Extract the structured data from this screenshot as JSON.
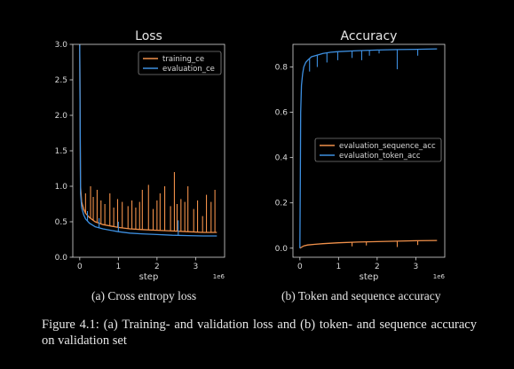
{
  "chart_data": [
    {
      "type": "line",
      "title": "Loss",
      "xlabel": "step",
      "x_scale_label": "1e6",
      "ylabel": "",
      "xlim": [
        -0.18,
        3.75
      ],
      "ylim": [
        0.0,
        3.0
      ],
      "x_ticks": [
        0,
        1,
        2,
        3
      ],
      "y_ticks": [
        0.0,
        0.5,
        1.0,
        1.5,
        2.0,
        2.5,
        3.0
      ],
      "legend_position": "upper right",
      "series": [
        {
          "name": "training_ce",
          "color": "#f0904a",
          "x": [
            0.0,
            0.02,
            0.05,
            0.1,
            0.15,
            0.25,
            0.4,
            0.6,
            0.8,
            1.0,
            1.3,
            1.6,
            2.0,
            2.4,
            2.8,
            3.2,
            3.55
          ],
          "y": [
            3.0,
            1.0,
            0.78,
            0.68,
            0.62,
            0.56,
            0.5,
            0.46,
            0.44,
            0.42,
            0.4,
            0.39,
            0.38,
            0.37,
            0.36,
            0.35,
            0.35
          ],
          "spikes": [
            {
              "x": 0.15,
              "y": 0.9
            },
            {
              "x": 0.28,
              "y": 1.0
            },
            {
              "x": 0.35,
              "y": 0.85
            },
            {
              "x": 0.45,
              "y": 0.95
            },
            {
              "x": 0.55,
              "y": 0.8
            },
            {
              "x": 0.65,
              "y": 0.75
            },
            {
              "x": 0.78,
              "y": 0.9
            },
            {
              "x": 0.88,
              "y": 0.7
            },
            {
              "x": 0.98,
              "y": 0.82
            },
            {
              "x": 1.1,
              "y": 0.78
            },
            {
              "x": 1.25,
              "y": 0.72
            },
            {
              "x": 1.35,
              "y": 0.8
            },
            {
              "x": 1.45,
              "y": 0.7
            },
            {
              "x": 1.55,
              "y": 0.78
            },
            {
              "x": 1.62,
              "y": 0.95
            },
            {
              "x": 1.78,
              "y": 1.02
            },
            {
              "x": 1.9,
              "y": 0.68
            },
            {
              "x": 2.0,
              "y": 0.8
            },
            {
              "x": 2.08,
              "y": 0.9
            },
            {
              "x": 2.2,
              "y": 1.0
            },
            {
              "x": 2.35,
              "y": 0.72
            },
            {
              "x": 2.45,
              "y": 1.2
            },
            {
              "x": 2.52,
              "y": 0.75
            },
            {
              "x": 2.62,
              "y": 0.82
            },
            {
              "x": 2.72,
              "y": 0.78
            },
            {
              "x": 2.8,
              "y": 1.0
            },
            {
              "x": 2.95,
              "y": 0.68
            },
            {
              "x": 3.05,
              "y": 0.8
            },
            {
              "x": 3.18,
              "y": 0.58
            },
            {
              "x": 3.28,
              "y": 0.88
            },
            {
              "x": 3.4,
              "y": 0.78
            },
            {
              "x": 3.5,
              "y": 0.95
            }
          ]
        },
        {
          "name": "evaluation_ce",
          "color": "#3d8fe0",
          "x": [
            0.0,
            0.02,
            0.05,
            0.1,
            0.15,
            0.25,
            0.4,
            0.6,
            0.8,
            1.0,
            1.3,
            1.6,
            2.0,
            2.4,
            2.8,
            3.2,
            3.55
          ],
          "y": [
            3.0,
            0.9,
            0.7,
            0.6,
            0.54,
            0.48,
            0.43,
            0.4,
            0.38,
            0.36,
            0.34,
            0.33,
            0.32,
            0.31,
            0.305,
            0.3,
            0.3
          ],
          "spikes": [
            {
              "x": 0.2,
              "y": 0.65
            },
            {
              "x": 0.5,
              "y": 0.55
            },
            {
              "x": 1.0,
              "y": 0.5
            },
            {
              "x": 2.55,
              "y": 0.52
            }
          ]
        }
      ]
    },
    {
      "type": "line",
      "title": "Accuracy",
      "xlabel": "step",
      "x_scale_label": "1e6",
      "ylabel": "",
      "xlim": [
        -0.18,
        3.75
      ],
      "ylim": [
        -0.04,
        0.9
      ],
      "x_ticks": [
        0,
        1,
        2,
        3
      ],
      "y_ticks": [
        0.0,
        0.2,
        0.4,
        0.6,
        0.8
      ],
      "legend_position": "center right",
      "series": [
        {
          "name": "evaluation_sequence_acc",
          "color": "#f0904a",
          "x": [
            0.0,
            0.05,
            0.1,
            0.2,
            0.4,
            0.6,
            0.8,
            1.0,
            1.5,
            2.0,
            2.5,
            3.0,
            3.55
          ],
          "y": [
            0.0,
            0.005,
            0.01,
            0.014,
            0.017,
            0.02,
            0.022,
            0.024,
            0.027,
            0.029,
            0.031,
            0.033,
            0.034
          ],
          "spikes": [
            {
              "x": 1.35,
              "y": 0.008
            },
            {
              "x": 1.72,
              "y": 0.012
            },
            {
              "x": 2.52,
              "y": 0.005
            },
            {
              "x": 3.05,
              "y": 0.014
            }
          ]
        },
        {
          "name": "evaluation_token_acc",
          "color": "#3d8fe0",
          "x": [
            0.0,
            0.01,
            0.02,
            0.04,
            0.07,
            0.1,
            0.15,
            0.2,
            0.3,
            0.4,
            0.6,
            0.8,
            1.0,
            1.5,
            2.0,
            2.5,
            3.0,
            3.55
          ],
          "y": [
            0.0,
            0.3,
            0.6,
            0.72,
            0.77,
            0.8,
            0.82,
            0.83,
            0.845,
            0.85,
            0.86,
            0.865,
            0.868,
            0.872,
            0.875,
            0.877,
            0.878,
            0.88
          ],
          "spikes": [
            {
              "x": 0.25,
              "y": 0.78
            },
            {
              "x": 0.45,
              "y": 0.8
            },
            {
              "x": 0.7,
              "y": 0.82
            },
            {
              "x": 0.98,
              "y": 0.83
            },
            {
              "x": 1.35,
              "y": 0.84
            },
            {
              "x": 1.6,
              "y": 0.83
            },
            {
              "x": 1.8,
              "y": 0.85
            },
            {
              "x": 2.05,
              "y": 0.86
            },
            {
              "x": 2.52,
              "y": 0.79
            },
            {
              "x": 3.05,
              "y": 0.85
            }
          ]
        }
      ]
    }
  ],
  "captions": {
    "a": "(a) Cross entropy loss",
    "b": "(b) Token and sequence accuracy"
  },
  "figure_caption": "Figure 4.1: (a) Training- and validation loss and (b) token- and sequence accuracy on validation set"
}
